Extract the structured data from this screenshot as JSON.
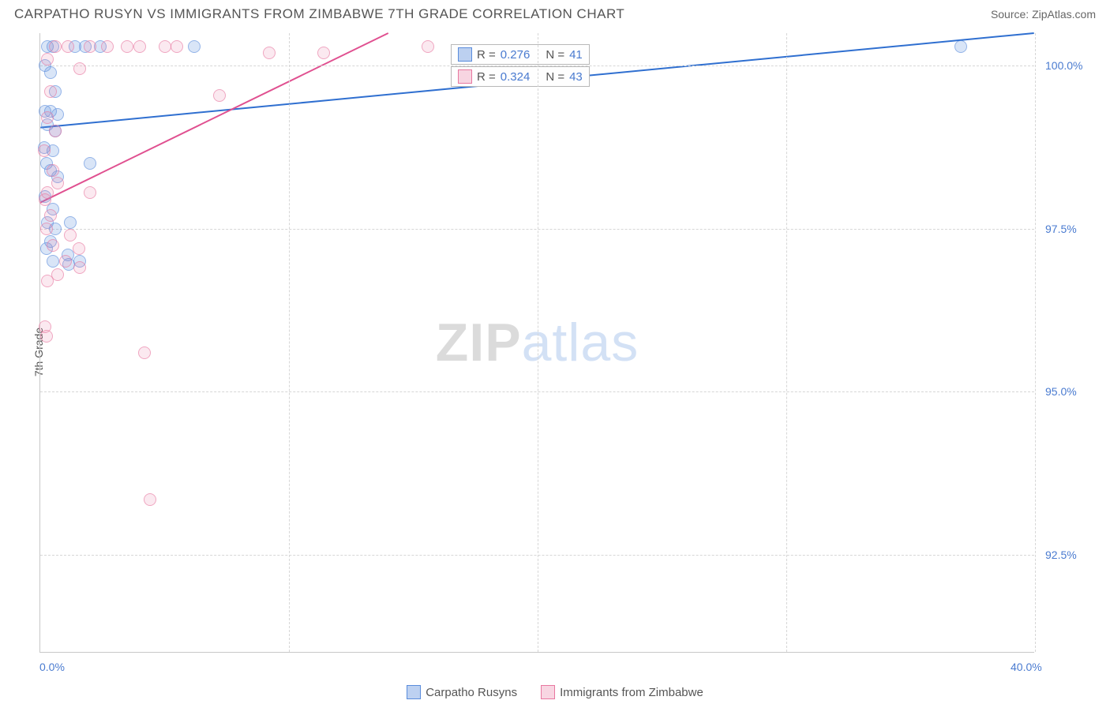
{
  "header": {
    "title": "CARPATHO RUSYN VS IMMIGRANTS FROM ZIMBABWE 7TH GRADE CORRELATION CHART",
    "source": "Source: ZipAtlas.com"
  },
  "y_axis_label": "7th Grade",
  "watermark": {
    "zip": "ZIP",
    "atlas": "atlas"
  },
  "chart": {
    "type": "scatter",
    "xlim": [
      0,
      40
    ],
    "ylim": [
      91,
      100.5
    ],
    "x_ticks": [
      {
        "value": 0,
        "label": "0.0%"
      },
      {
        "value": 40,
        "label": "40.0%"
      }
    ],
    "x_grid_at": [
      10,
      20,
      30,
      40
    ],
    "y_ticks": [
      {
        "value": 92.5,
        "label": "92.5%"
      },
      {
        "value": 95.0,
        "label": "95.0%"
      },
      {
        "value": 97.5,
        "label": "97.5%"
      },
      {
        "value": 100.0,
        "label": "100.0%"
      }
    ],
    "series": [
      {
        "name": "Carpatho Rusyns",
        "color_fill": "rgba(90,140,220,0.35)",
        "color_stroke": "#5a8cdc",
        "r_value": "0.276",
        "n_value": "41",
        "trend": {
          "x1": 0,
          "y1": 99.05,
          "x2": 40,
          "y2": 100.5,
          "stroke": "#2f6fd0",
          "width": 2
        },
        "points": [
          [
            0.3,
            100.3
          ],
          [
            0.5,
            100.3
          ],
          [
            1.4,
            100.3
          ],
          [
            1.8,
            100.3
          ],
          [
            2.4,
            100.3
          ],
          [
            6.2,
            100.3
          ],
          [
            37.0,
            100.3
          ],
          [
            0.2,
            100.0
          ],
          [
            0.4,
            99.9
          ],
          [
            0.6,
            99.6
          ],
          [
            0.2,
            99.3
          ],
          [
            0.4,
            99.3
          ],
          [
            0.7,
            99.25
          ],
          [
            0.3,
            99.1
          ],
          [
            0.6,
            99.0
          ],
          [
            0.15,
            98.75
          ],
          [
            0.5,
            98.7
          ],
          [
            0.25,
            98.5
          ],
          [
            2.0,
            98.5
          ],
          [
            0.4,
            98.4
          ],
          [
            0.7,
            98.3
          ],
          [
            0.2,
            98.0
          ],
          [
            0.5,
            97.8
          ],
          [
            0.3,
            97.6
          ],
          [
            1.2,
            97.6
          ],
          [
            0.6,
            97.5
          ],
          [
            0.4,
            97.3
          ],
          [
            0.25,
            97.2
          ],
          [
            1.1,
            97.1
          ],
          [
            0.5,
            97.0
          ],
          [
            1.6,
            97.0
          ],
          [
            1.15,
            96.95
          ]
        ]
      },
      {
        "name": "Immigrants from Zimbabwe",
        "color_fill": "rgba(232,120,160,0.25)",
        "color_stroke": "#e878a0",
        "r_value": "0.324",
        "n_value": "43",
        "trend": {
          "x1": 0,
          "y1": 97.9,
          "x2": 14,
          "y2": 100.5,
          "stroke": "#e05090",
          "width": 2
        },
        "points": [
          [
            0.6,
            100.3
          ],
          [
            1.1,
            100.3
          ],
          [
            2.0,
            100.3
          ],
          [
            2.7,
            100.3
          ],
          [
            3.5,
            100.3
          ],
          [
            4.0,
            100.3
          ],
          [
            5.0,
            100.3
          ],
          [
            5.5,
            100.3
          ],
          [
            9.2,
            100.2
          ],
          [
            11.4,
            100.2
          ],
          [
            15.6,
            100.3
          ],
          [
            0.3,
            100.1
          ],
          [
            1.6,
            99.95
          ],
          [
            0.4,
            99.6
          ],
          [
            7.2,
            99.55
          ],
          [
            0.3,
            99.2
          ],
          [
            0.6,
            99.0
          ],
          [
            0.15,
            98.7
          ],
          [
            0.5,
            98.4
          ],
          [
            0.7,
            98.2
          ],
          [
            0.3,
            98.05
          ],
          [
            2.0,
            98.05
          ],
          [
            0.2,
            97.95
          ],
          [
            0.4,
            97.7
          ],
          [
            0.25,
            97.5
          ],
          [
            1.2,
            97.4
          ],
          [
            0.5,
            97.25
          ],
          [
            1.55,
            97.2
          ],
          [
            1.0,
            97.0
          ],
          [
            1.6,
            96.9
          ],
          [
            0.7,
            96.8
          ],
          [
            0.3,
            96.7
          ],
          [
            0.2,
            96.0
          ],
          [
            0.25,
            95.85
          ],
          [
            4.2,
            95.6
          ],
          [
            4.4,
            93.35
          ]
        ]
      }
    ]
  },
  "stat_legend": {
    "rows": [
      {
        "swatch": "blue",
        "r": "0.276",
        "n": "41"
      },
      {
        "swatch": "pink",
        "r": "0.324",
        "n": "43"
      }
    ]
  },
  "bottom_legend": {
    "items": [
      {
        "swatch": "blue",
        "label": "Carpatho Rusyns"
      },
      {
        "swatch": "pink",
        "label": "Immigrants from Zimbabwe"
      }
    ]
  }
}
